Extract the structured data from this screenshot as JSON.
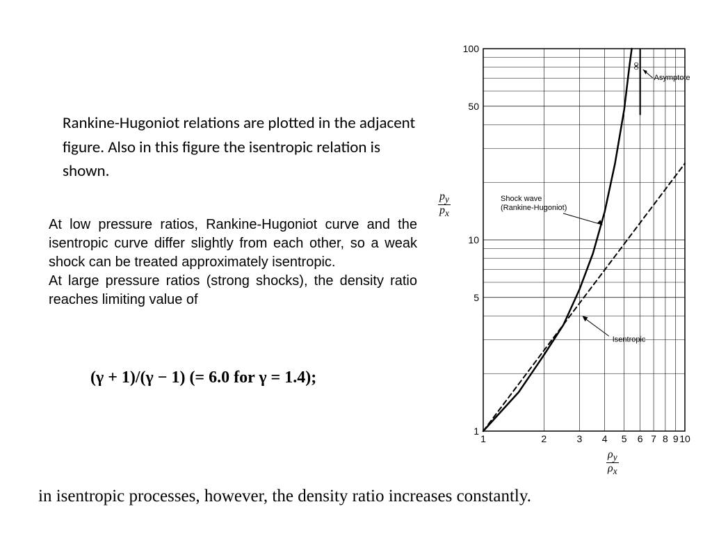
{
  "text": {
    "para1": "Rankine-Hugoniot relations are plotted in the adjacent figure. Also in this figure the isentropic relation is shown.",
    "para2a": "At low pressure ratios, Rankine-Hugoniot curve and the isentropic curve differ slightly from each other, so a weak shock can be treated approximately isentropic.",
    "para2b": "At large pressure ratios (strong shocks), the density ratio reaches limiting value of",
    "equation": "(γ + 1)/(γ − 1) (= 6.0 for γ = 1.4);",
    "bottom": "in isentropic processes, however, the density ratio increases constantly."
  },
  "chart": {
    "type": "line",
    "x_axis": {
      "scale": "log",
      "min": 1,
      "max": 10,
      "ticks": [
        1,
        2,
        3,
        4,
        5,
        6,
        7,
        8,
        9,
        10
      ],
      "label_num": "ρ_y",
      "label_den": "ρ_x"
    },
    "y_axis": {
      "scale": "log",
      "min": 1,
      "max": 100,
      "major_ticks": [
        1,
        5,
        10,
        50,
        100
      ],
      "label_num": "p_y",
      "label_den": "p_x"
    },
    "minor_y_lines": [
      2,
      3,
      4,
      6,
      7,
      8,
      9,
      20,
      30,
      40,
      60,
      70,
      80,
      90
    ],
    "asymptote_x": 6.0,
    "curves": {
      "rankine_hugoniot": {
        "label": "Shock wave\n(Rankine-Hugoniot)",
        "stroke": "#000000",
        "stroke_width": 2.5,
        "dash": "none",
        "points": [
          [
            1.0,
            1.0
          ],
          [
            1.5,
            1.6
          ],
          [
            2.0,
            2.5
          ],
          [
            2.5,
            3.6
          ],
          [
            3.0,
            5.5
          ],
          [
            3.5,
            8.5
          ],
          [
            4.0,
            14
          ],
          [
            4.5,
            25
          ],
          [
            5.0,
            48
          ],
          [
            5.3,
            80
          ],
          [
            5.45,
            100
          ]
        ]
      },
      "isentropic": {
        "label": "Isentropic",
        "stroke": "#000000",
        "stroke_width": 2.0,
        "dash": "7,5",
        "points": [
          [
            1.0,
            1.0
          ],
          [
            2.0,
            2.64
          ],
          [
            3.0,
            4.66
          ],
          [
            4.0,
            6.96
          ],
          [
            5.0,
            9.52
          ],
          [
            6.0,
            12.29
          ],
          [
            7.0,
            15.25
          ],
          [
            8.0,
            18.38
          ],
          [
            9.0,
            21.67
          ],
          [
            10.0,
            25.12
          ]
        ]
      }
    },
    "annotations": {
      "asymptote": {
        "text": "Asymptote",
        "infinity": "∞"
      },
      "shock": "Shock wave (Rankine-Hugoniot)",
      "isentropic": "Isentropic"
    },
    "grid_color": "#000000",
    "background": "#ffffff",
    "tick_fontsize": 14,
    "annotation_fontsize": 11
  }
}
